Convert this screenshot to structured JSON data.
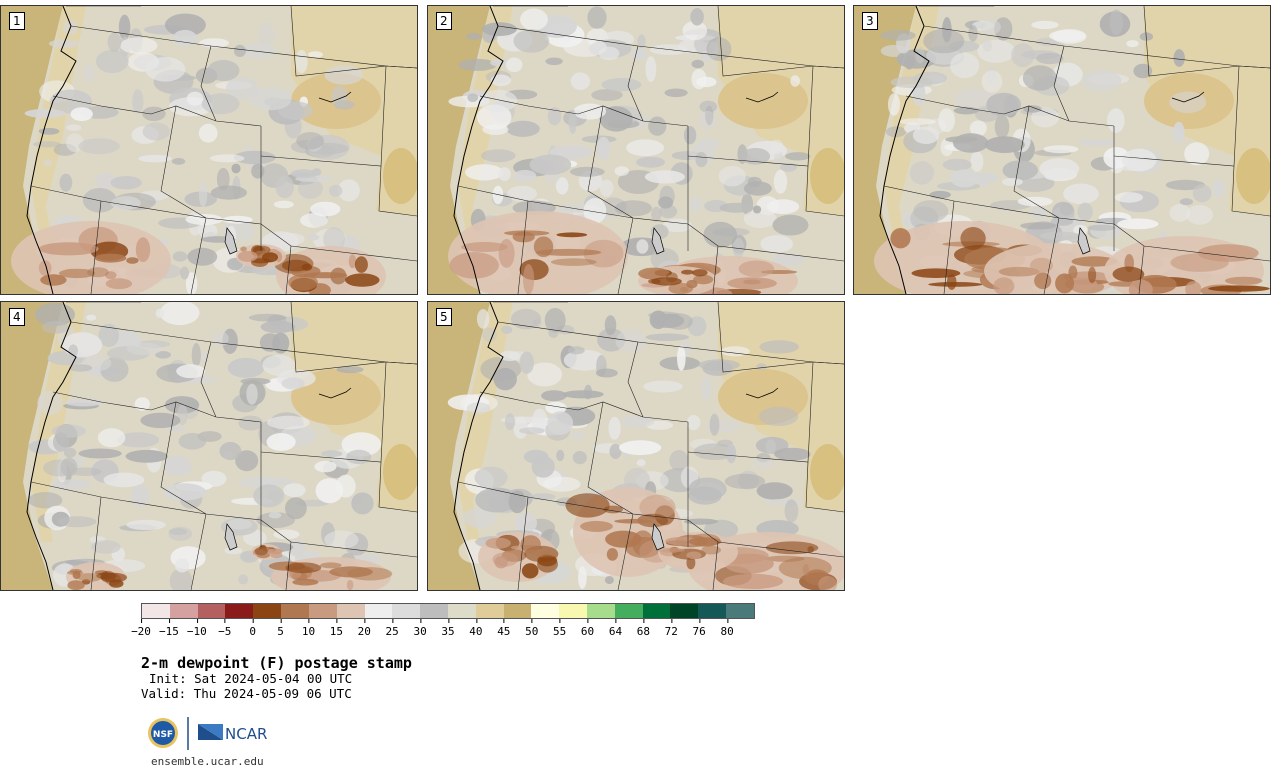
{
  "panels": [
    {
      "label": "1",
      "seed": 11,
      "warm": [
        [
          90,
          255,
          80,
          40
        ],
        [
          330,
          270,
          55,
          30
        ],
        [
          260,
          250,
          25,
          12
        ]
      ]
    },
    {
      "label": "2",
      "seed": 23,
      "warm": [
        [
          110,
          250,
          90,
          45
        ],
        [
          300,
          275,
          70,
          25
        ],
        [
          250,
          275,
          40,
          15
        ]
      ]
    },
    {
      "label": "3",
      "seed": 37,
      "warm": [
        [
          110,
          255,
          90,
          40
        ],
        [
          200,
          265,
          70,
          28
        ],
        [
          330,
          265,
          80,
          35
        ]
      ]
    },
    {
      "label": "4",
      "seed": 51,
      "warm": [
        [
          95,
          275,
          30,
          15
        ],
        [
          330,
          275,
          60,
          20
        ],
        [
          265,
          250,
          15,
          8
        ]
      ]
    },
    {
      "label": "5",
      "seed": 67,
      "warm": [
        [
          90,
          255,
          40,
          25
        ],
        [
          200,
          230,
          55,
          45
        ],
        [
          340,
          265,
          80,
          35
        ],
        [
          270,
          250,
          40,
          20
        ]
      ]
    }
  ],
  "colorbar": {
    "colors": [
      "#f2e6e6",
      "#d4a0a0",
      "#b56060",
      "#8b1a1a",
      "#8a4513",
      "#b07850",
      "#c89a80",
      "#dec4b2",
      "#eeeeee",
      "#dcdcdc",
      "#bdbdbd",
      "#dcdcc8",
      "#e0cc98",
      "#c8b070",
      "#fefee0",
      "#f8f8b0",
      "#a6dc8c",
      "#44ae5e",
      "#00703a",
      "#004428",
      "#155858",
      "#4a7a7a"
    ],
    "ticks": [
      "−20",
      "−15",
      "−10",
      "−5",
      "0",
      "5",
      "10",
      "15",
      "20",
      "25",
      "30",
      "35",
      "40",
      "45",
      "50",
      "55",
      "60",
      "64",
      "68",
      "72",
      "76",
      "80"
    ]
  },
  "title": "2-m dewpoint (F) postage stamp",
  "init": "Init: Sat 2024-05-04 00 UTC",
  "valid": "Valid: Thu 2024-05-09 06 UTC",
  "logo": {
    "left": "NSF",
    "right": "NCAR"
  },
  "url": "ensemble.ucar.edu"
}
